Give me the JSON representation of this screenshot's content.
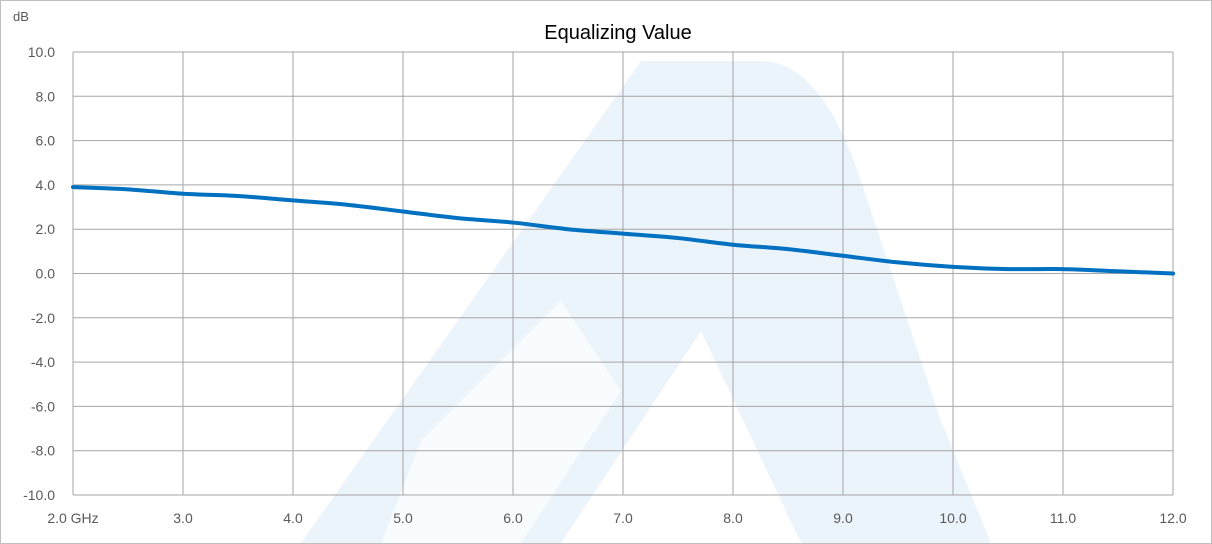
{
  "chart_data": {
    "type": "line",
    "title": "Equalizing Value",
    "y_unit": "dB",
    "x": [
      2.0,
      2.5,
      3.0,
      3.5,
      4.0,
      4.5,
      5.0,
      5.5,
      6.0,
      6.5,
      7.0,
      7.5,
      8.0,
      8.5,
      9.0,
      9.5,
      10.0,
      10.5,
      11.0,
      11.5,
      12.0
    ],
    "series": [
      {
        "values": [
          3.9,
          3.8,
          3.6,
          3.5,
          3.3,
          3.1,
          2.8,
          2.5,
          2.3,
          2.0,
          1.8,
          1.6,
          1.3,
          1.1,
          0.8,
          0.5,
          0.3,
          0.2,
          0.2,
          0.1,
          0.0
        ],
        "color": "#0070c0"
      }
    ],
    "xlim": [
      2.0,
      12.0
    ],
    "ylim": [
      -10.0,
      10.0
    ],
    "x_ticks": [
      2,
      3,
      4,
      5,
      6,
      7,
      8,
      9,
      10,
      11,
      12
    ],
    "x_tick_labels": [
      "2.0 GHz",
      "3.0",
      "4.0",
      "5.0",
      "6.0",
      "7.0",
      "8.0",
      "9.0",
      "10.0",
      "11.0",
      "12.0"
    ],
    "y_ticks": [
      10,
      8,
      6,
      4,
      2,
      0,
      -2,
      -4,
      -6,
      -8,
      -10
    ],
    "y_tick_labels": [
      "10.0",
      "8.0",
      "6.0",
      "4.0",
      "2.0",
      "0.0",
      "-2.0",
      "-4.0",
      "-6.0",
      "-8.0",
      "-10.0"
    ],
    "grid": true,
    "legend": "none"
  },
  "colors": {
    "grid": "#a6a6a6",
    "line": "#0070c0",
    "watermark": "#dbe9f7"
  }
}
